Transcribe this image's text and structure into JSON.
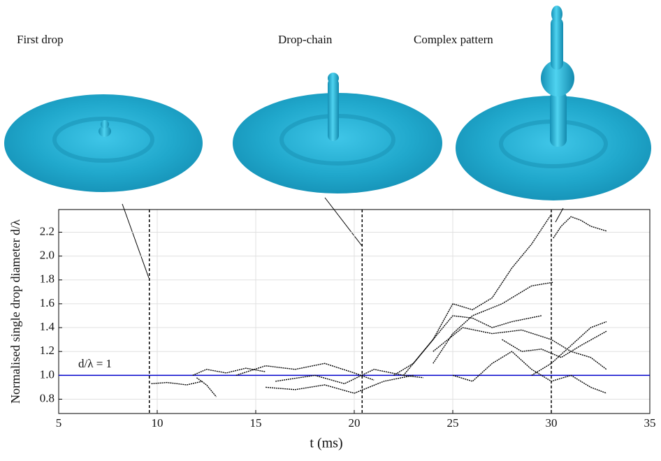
{
  "chart_data": {
    "type": "line",
    "panel_labels": [
      "First drop",
      "Drop-chain",
      "Complex pattern"
    ],
    "xlabel": "t (ms)",
    "ylabel": "Normalised single drop diameter d/λ",
    "annotation": "d/λ = 1",
    "reference_line": {
      "value": 1,
      "color": "#0000cc"
    },
    "markers": [
      9.6,
      20.4,
      30
    ],
    "xlim": [
      5,
      35
    ],
    "xticks": [
      5,
      10,
      15,
      20,
      25,
      30,
      35
    ],
    "ylim": [
      0.68,
      2.39
    ],
    "yticks": [
      0.8,
      {
        "value": 1,
        "label": "1.0"
      },
      1.2,
      1.4,
      1.6,
      1.8,
      {
        "value": 2,
        "label": "2.0"
      },
      2.2
    ],
    "grid": true,
    "color": "#000000",
    "series": [
      {
        "x": [
          9.7,
          10.5,
          11.5,
          12.3
        ],
        "values": [
          0.93,
          0.94,
          0.92,
          0.95
        ]
      },
      {
        "x": [
          11.8,
          12.5,
          13.5,
          14.5,
          15.5
        ],
        "values": [
          1.0,
          1.05,
          1.02,
          1.06,
          1.03
        ]
      },
      {
        "x": [
          12,
          12.5,
          13
        ],
        "values": [
          0.98,
          0.92,
          0.82
        ]
      },
      {
        "x": [
          14,
          15.5,
          17,
          18.5,
          20,
          21
        ],
        "values": [
          1.0,
          1.08,
          1.05,
          1.1,
          1.02,
          0.96
        ]
      },
      {
        "x": [
          15.5,
          17,
          18.5,
          20,
          21.5,
          23
        ],
        "values": [
          0.9,
          0.88,
          0.92,
          0.85,
          0.95,
          1.0
        ]
      },
      {
        "x": [
          16,
          18,
          19.5,
          21,
          22.5,
          23.5
        ],
        "values": [
          0.95,
          1.0,
          0.93,
          1.05,
          1.0,
          0.98
        ]
      },
      {
        "x": [
          22,
          23,
          24,
          25,
          26,
          27,
          28,
          29.5
        ],
        "values": [
          1.0,
          1.1,
          1.3,
          1.5,
          1.48,
          1.4,
          1.45,
          1.5
        ]
      },
      {
        "x": [
          22.5,
          24,
          25,
          26,
          27,
          28,
          29,
          30
        ],
        "values": [
          1.0,
          1.3,
          1.6,
          1.55,
          1.65,
          1.9,
          2.1,
          2.35
        ]
      },
      {
        "x": [
          24,
          25,
          26,
          27.5,
          29,
          30.1
        ],
        "values": [
          1.1,
          1.35,
          1.5,
          1.6,
          1.75,
          1.78
        ]
      },
      {
        "x": [
          24,
          25.5,
          27,
          28.5,
          30,
          31,
          32,
          32.8
        ],
        "values": [
          1.2,
          1.4,
          1.35,
          1.38,
          1.3,
          1.2,
          1.15,
          1.05
        ]
      },
      {
        "x": [
          30.1,
          30.5,
          31,
          31.5,
          32,
          32.8
        ],
        "values": [
          2.15,
          2.25,
          2.33,
          2.3,
          2.25,
          2.21
        ]
      },
      {
        "x": [
          29,
          30,
          31,
          32,
          32.8
        ],
        "values": [
          1.0,
          1.1,
          1.25,
          1.4,
          1.45
        ]
      },
      {
        "x": [
          25,
          26,
          27,
          28,
          29,
          30,
          31,
          32,
          32.8
        ],
        "values": [
          1.0,
          0.95,
          1.1,
          1.2,
          1.05,
          0.95,
          1.0,
          0.9,
          0.85
        ]
      },
      {
        "x": [
          27.5,
          28.5,
          29.5,
          30.5,
          31.5,
          32.8
        ],
        "values": [
          1.3,
          1.2,
          1.22,
          1.15,
          1.25,
          1.37
        ]
      }
    ]
  }
}
